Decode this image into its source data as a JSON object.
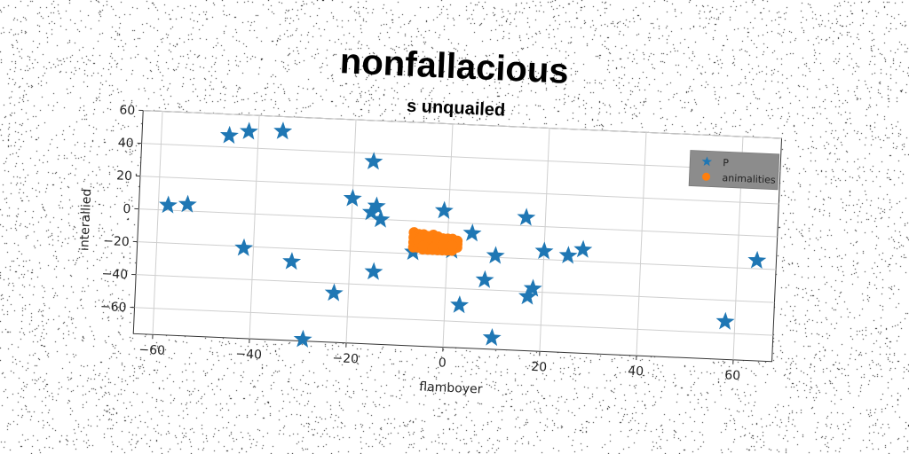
{
  "chart_data": {
    "type": "scatter",
    "title": "nonfallacious",
    "subtitle": "s unquailed",
    "xlabel": "flamboyer",
    "ylabel": "interallied",
    "xlim": [
      -64,
      68
    ],
    "ylim": [
      -76,
      60
    ],
    "xticks": [
      -60,
      -40,
      -20,
      0,
      20,
      40,
      60
    ],
    "yticks": [
      -60,
      -40,
      -20,
      0,
      20,
      40,
      60
    ],
    "xtick_labels": [
      "−60",
      "−40",
      "−20",
      "0",
      "20",
      "40",
      "60"
    ],
    "ytick_labels": [
      "−60",
      "−40",
      "−20",
      "0",
      "20",
      "40",
      "60"
    ],
    "grid": true,
    "legend_position": "top-right",
    "series": [
      {
        "name": "P",
        "marker": "star",
        "color": "#1f77b4",
        "points": [
          [
            -58,
            3
          ],
          [
            -54,
            4
          ],
          [
            -46,
            47
          ],
          [
            -42,
            50
          ],
          [
            -35,
            51
          ],
          [
            -42,
            -21
          ],
          [
            -32,
            -28
          ],
          [
            -29,
            -75
          ],
          [
            -23,
            -46
          ],
          [
            -20,
            12
          ],
          [
            -16,
            35
          ],
          [
            -15,
            8
          ],
          [
            -16,
            4
          ],
          [
            -14,
            0
          ],
          [
            -15,
            -32
          ],
          [
            -7,
            -19
          ],
          [
            -1,
            7
          ],
          [
            1,
            -17
          ],
          [
            3,
            -50
          ],
          [
            5,
            -6
          ],
          [
            8,
            -34
          ],
          [
            10,
            -19
          ],
          [
            10,
            -69
          ],
          [
            16,
            5
          ],
          [
            17,
            -43
          ],
          [
            18,
            -38
          ],
          [
            20,
            -15
          ],
          [
            25,
            -17
          ],
          [
            28,
            -13
          ],
          [
            58,
            -53
          ],
          [
            64,
            -15
          ]
        ]
      },
      {
        "name": "animalities",
        "marker": "circle",
        "color": "#ff7f0e",
        "points": [
          [
            -7,
            -7
          ],
          [
            -6,
            -8
          ],
          [
            -5,
            -8
          ],
          [
            -4,
            -9
          ],
          [
            -3,
            -8
          ],
          [
            -2,
            -9
          ],
          [
            -1,
            -10
          ],
          [
            0,
            -10
          ],
          [
            1,
            -10
          ],
          [
            2,
            -11
          ],
          [
            -7,
            -10
          ],
          [
            -6,
            -11
          ],
          [
            -5,
            -11
          ],
          [
            -4,
            -12
          ],
          [
            -3,
            -11
          ],
          [
            -2,
            -12
          ],
          [
            -1,
            -13
          ],
          [
            0,
            -13
          ],
          [
            1,
            -12
          ],
          [
            2,
            -13
          ],
          [
            -7,
            -13
          ],
          [
            -6,
            -14
          ],
          [
            -5,
            -14
          ],
          [
            -4,
            -15
          ],
          [
            -3,
            -14
          ],
          [
            -2,
            -15
          ],
          [
            -1,
            -15
          ],
          [
            0,
            -16
          ],
          [
            1,
            -15
          ],
          [
            2,
            -15
          ],
          [
            -7,
            -16
          ],
          [
            -6,
            -16
          ],
          [
            -5,
            -17
          ],
          [
            -4,
            -17
          ],
          [
            -3,
            -17
          ],
          [
            -2,
            -17
          ],
          [
            -1,
            -17
          ],
          [
            0,
            -17
          ],
          [
            1,
            -17
          ],
          [
            -6,
            -12
          ],
          [
            -4,
            -10
          ],
          [
            -2,
            -11
          ],
          [
            0,
            -12
          ],
          [
            -5,
            -15
          ],
          [
            -3,
            -16
          ],
          [
            -1,
            -14
          ],
          [
            1,
            -14
          ]
        ]
      }
    ]
  }
}
